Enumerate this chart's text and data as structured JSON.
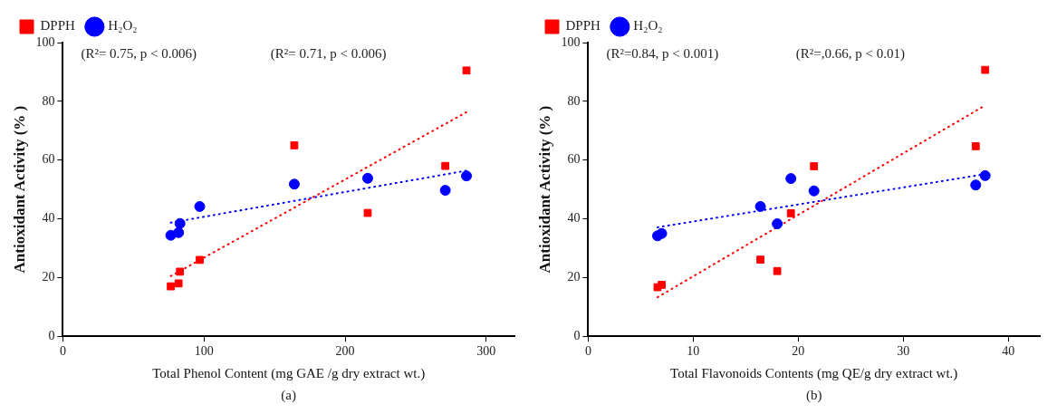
{
  "chart_data": [
    {
      "type": "scatter",
      "xlabel": "Total Phenol Content (mg GAE /g dry extract wt.)",
      "ylabel": "Antioxidant Activity (% )",
      "xlim": [
        0,
        320
      ],
      "xticks": [
        0,
        100,
        200,
        300
      ],
      "ylim": [
        0,
        100
      ],
      "yticks": [
        0,
        20,
        40,
        60,
        80,
        100
      ],
      "grid": false,
      "legend": "top left",
      "annotations": [
        "(R²= 0.75, p < 0.006)",
        "(R²= 0.71, p < 0.006)",
        "(a)"
      ],
      "series": [
        {
          "name": "DPPH",
          "color": "#ff0000",
          "marker": "square",
          "x": [
            76.5,
            82,
            83,
            97,
            164,
            216,
            271,
            286
          ],
          "values": [
            17,
            18,
            22,
            26,
            65,
            42,
            58,
            90.5
          ]
        },
        {
          "name": "H₂O₂",
          "color": "#0000ff",
          "marker": "circle",
          "x": [
            76.5,
            82,
            83,
            97,
            164,
            216,
            271,
            286
          ],
          "values": [
            34.4,
            35.3,
            38.4,
            44.2,
            51.8,
            53.8,
            49.7,
            54.6
          ]
        },
        {
          "type": "line",
          "color": "#ff0000",
          "line_style": "dotted",
          "marker": "none",
          "x": [
            76.5,
            286
          ],
          "values": [
            20.5,
            76.3
          ]
        },
        {
          "type": "line",
          "color": "#0000ff",
          "line_style": "dotted",
          "marker": "none",
          "x": [
            76.5,
            286
          ],
          "values": [
            38.7,
            56.4
          ]
        }
      ]
    },
    {
      "type": "scatter",
      "xlabel": "Total Flavonoids Contents (mg QE/g dry extract wt.)",
      "ylabel": "Antioxidant Activity (% )",
      "xlim": [
        0,
        43
      ],
      "xticks": [
        0,
        10,
        20,
        30,
        40
      ],
      "ylim": [
        0,
        100
      ],
      "yticks": [
        0,
        20,
        40,
        60,
        80,
        100
      ],
      "grid": false,
      "legend": "top left",
      "annotations": [
        "(R²=0.84, p < 0.001)",
        "(R²=,0.66, p < 0.01)",
        "(b)"
      ],
      "series": [
        {
          "name": "DPPH",
          "color": "#ff0000",
          "marker": "square",
          "x": [
            6.6,
            7.0,
            16.4,
            18.0,
            19.3,
            21.5,
            36.9,
            37.8
          ],
          "values": [
            16.7,
            17.5,
            26.1,
            22.2,
            41.9,
            57.9,
            64.7,
            90.7
          ]
        },
        {
          "name": "H₂O₂",
          "color": "#0000ff",
          "marker": "circle",
          "x": [
            6.6,
            7.0,
            16.4,
            18.0,
            19.3,
            21.5,
            36.9,
            37.8
          ],
          "values": [
            34.2,
            35.0,
            44.2,
            38.3,
            53.7,
            49.5,
            51.5,
            54.7
          ]
        },
        {
          "type": "line",
          "color": "#ff0000",
          "line_style": "dotted",
          "marker": "none",
          "x": [
            6.6,
            37.6
          ],
          "values": [
            13.3,
            78.2
          ]
        },
        {
          "type": "line",
          "color": "#0000ff",
          "line_style": "dotted",
          "marker": "none",
          "x": [
            6.6,
            37.6
          ],
          "values": [
            37.1,
            55.1
          ]
        }
      ]
    }
  ]
}
